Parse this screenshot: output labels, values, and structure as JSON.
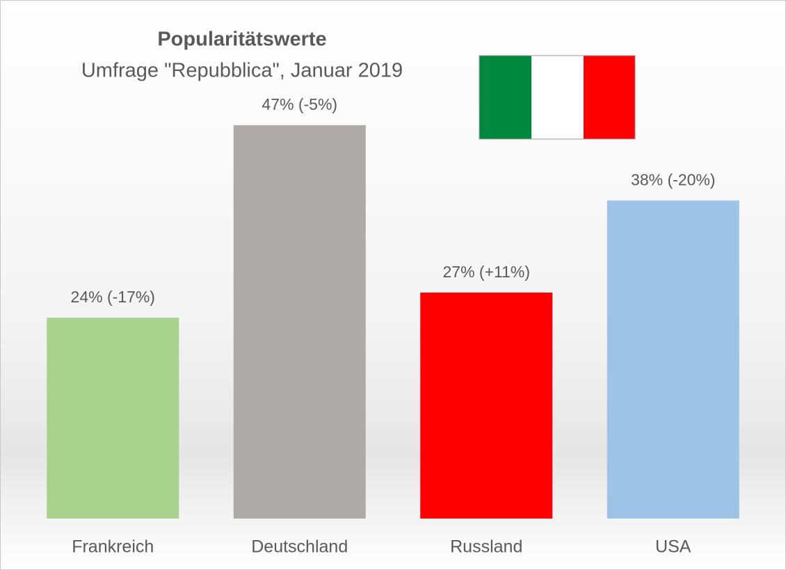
{
  "chart_data": {
    "type": "bar",
    "title": "Popularitätswerte",
    "subtitle": "Umfrage \"Repubblica\", Januar 2019",
    "categories": [
      "Frankreich",
      "Deutschland",
      "Russland",
      "USA"
    ],
    "values": [
      24,
      47,
      27,
      38
    ],
    "value_labels": [
      "24% (-17%)",
      "47% (-5%)",
      "27% (+11%)",
      "38% (-20%)"
    ],
    "colors": [
      "#a9d18e",
      "#aeaaaa",
      "#ff0000",
      "#9dc3e6"
    ]
  }
}
